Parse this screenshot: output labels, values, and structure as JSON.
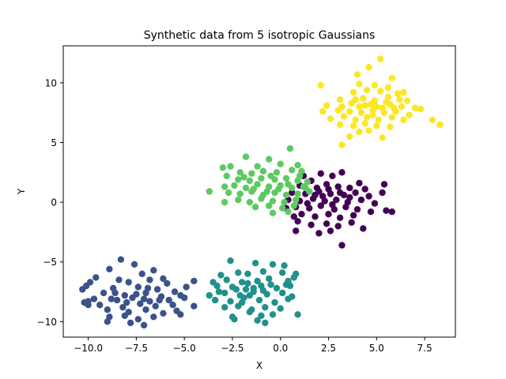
{
  "chart_data": {
    "type": "scatter",
    "title": "Synthetic data from 5 isotropic Gaussians",
    "xlabel": "X",
    "ylabel": "Y",
    "xlim": [
      -11.3,
      9.1
    ],
    "ylim": [
      -11.3,
      13.1
    ],
    "grid": false,
    "x_ticks": [
      -10.0,
      -7.5,
      -5.0,
      -2.5,
      0.0,
      2.5,
      5.0,
      7.5
    ],
    "x_tick_labels": [
      "−10.0",
      "−7.5",
      "−5.0",
      "−2.5",
      "0.0",
      "2.5",
      "5.0",
      "7.5"
    ],
    "y_ticks": [
      -10,
      -5,
      0,
      5,
      10
    ],
    "y_tick_labels": [
      "−10",
      "−5",
      "0",
      "5",
      "10"
    ],
    "series": [
      {
        "color": "#440154",
        "points": [
          [
            1.2,
            2.2
          ],
          [
            1.6,
            1.8
          ],
          [
            2.1,
            2.4
          ],
          [
            2.7,
            2.2
          ],
          [
            3.2,
            2.5
          ],
          [
            4.1,
            1.6
          ],
          [
            1.0,
            1.4
          ],
          [
            1.9,
            1.2
          ],
          [
            2.4,
            1.5
          ],
          [
            3.0,
            1.3
          ],
          [
            3.6,
            1.2
          ],
          [
            4.4,
            1.1
          ],
          [
            0.6,
            0.8
          ],
          [
            1.3,
            0.7
          ],
          [
            2.0,
            0.9
          ],
          [
            2.6,
            0.7
          ],
          [
            3.3,
            0.6
          ],
          [
            3.9,
            0.8
          ],
          [
            4.6,
            0.5
          ],
          [
            0.4,
            0.2
          ],
          [
            1.0,
            0.1
          ],
          [
            1.7,
            0.3
          ],
          [
            2.3,
            0.1
          ],
          [
            2.9,
            0.2
          ],
          [
            3.5,
            0.0
          ],
          [
            4.2,
            0.2
          ],
          [
            4.9,
            -0.1
          ],
          [
            0.8,
            -0.4
          ],
          [
            1.5,
            -0.5
          ],
          [
            2.1,
            -0.3
          ],
          [
            2.8,
            -0.6
          ],
          [
            3.4,
            -0.4
          ],
          [
            4.0,
            -0.6
          ],
          [
            4.7,
            -0.8
          ],
          [
            1.1,
            -1.0
          ],
          [
            1.8,
            -1.2
          ],
          [
            2.5,
            -1.0
          ],
          [
            3.1,
            -1.3
          ],
          [
            3.8,
            -1.1
          ],
          [
            0.9,
            -1.6
          ],
          [
            1.6,
            -1.9
          ],
          [
            2.4,
            -1.8
          ],
          [
            3.0,
            -2.0
          ],
          [
            3.7,
            -1.7
          ],
          [
            0.8,
            -2.4
          ],
          [
            2.0,
            -2.6
          ],
          [
            2.6,
            -2.4
          ],
          [
            4.3,
            -2.2
          ],
          [
            3.2,
            -3.6
          ],
          [
            5.5,
            -0.7
          ],
          [
            5.8,
            -0.8
          ],
          [
            0.3,
            -0.5
          ],
          [
            1.4,
            -0.1
          ],
          [
            2.2,
            0.5
          ],
          [
            2.7,
            -0.2
          ],
          [
            3.1,
            0.8
          ],
          [
            3.6,
            0.4
          ],
          [
            1.8,
            0.6
          ],
          [
            2.5,
            1.1
          ],
          [
            0.7,
            -1.2
          ],
          [
            5.4,
            1.5
          ],
          [
            5.3,
            0.8
          ]
        ]
      },
      {
        "color": "#3b528b",
        "points": [
          [
            -8.3,
            -4.8
          ],
          [
            -7.6,
            -5.2
          ],
          [
            -6.6,
            -5.7
          ],
          [
            -8.9,
            -5.6
          ],
          [
            -7.2,
            -6.0
          ],
          [
            -6.1,
            -6.4
          ],
          [
            -9.6,
            -6.3
          ],
          [
            -8.4,
            -6.5
          ],
          [
            -7.9,
            -6.7
          ],
          [
            -6.8,
            -6.5
          ],
          [
            -5.9,
            -6.8
          ],
          [
            -9.9,
            -6.7
          ],
          [
            -10.1,
            -7.0
          ],
          [
            -8.7,
            -7.2
          ],
          [
            -7.4,
            -7.1
          ],
          [
            -6.4,
            -7.3
          ],
          [
            -5.5,
            -7.5
          ],
          [
            -10.3,
            -7.3
          ],
          [
            -9.2,
            -7.6
          ],
          [
            -8.1,
            -7.8
          ],
          [
            -7.0,
            -7.6
          ],
          [
            -6.2,
            -7.9
          ],
          [
            -5.2,
            -7.8
          ],
          [
            -9.7,
            -8.1
          ],
          [
            -8.5,
            -8.2
          ],
          [
            -7.7,
            -8.0
          ],
          [
            -6.8,
            -8.3
          ],
          [
            -5.8,
            -8.2
          ],
          [
            -5.0,
            -8.0
          ],
          [
            -10.0,
            -8.3
          ],
          [
            -9.4,
            -8.6
          ],
          [
            -8.2,
            -8.8
          ],
          [
            -7.3,
            -8.5
          ],
          [
            -6.5,
            -8.7
          ],
          [
            -5.6,
            -8.6
          ],
          [
            -4.5,
            -8.7
          ],
          [
            -10.0,
            -8.6
          ],
          [
            -9.0,
            -9.0
          ],
          [
            -7.9,
            -9.2
          ],
          [
            -7.0,
            -9.0
          ],
          [
            -6.1,
            -9.3
          ],
          [
            -5.4,
            -9.1
          ],
          [
            -8.9,
            -9.6
          ],
          [
            -8.1,
            -9.5
          ],
          [
            -7.4,
            -9.8
          ],
          [
            -6.6,
            -9.6
          ],
          [
            -9.0,
            -10.0
          ],
          [
            -7.8,
            -10.1
          ],
          [
            -7.1,
            -10.3
          ],
          [
            -4.5,
            -6.6
          ],
          [
            -4.9,
            -7.1
          ],
          [
            -10.2,
            -8.4
          ],
          [
            -8.6,
            -7.6
          ],
          [
            -7.5,
            -7.7
          ],
          [
            -6.9,
            -7.2
          ],
          [
            -8.0,
            -8.4
          ],
          [
            -7.1,
            -8.1
          ],
          [
            -6.3,
            -8.2
          ],
          [
            -8.8,
            -8.1
          ],
          [
            -5.2,
            -9.4
          ]
        ]
      },
      {
        "color": "#21918c",
        "points": [
          [
            -2.6,
            -4.9
          ],
          [
            -1.3,
            -5.1
          ],
          [
            -0.4,
            -5.2
          ],
          [
            0.2,
            -5.3
          ],
          [
            -3.1,
            -6.1
          ],
          [
            -2.2,
            -5.9
          ],
          [
            -1.7,
            -6.0
          ],
          [
            -0.9,
            -5.8
          ],
          [
            0.1,
            -5.9
          ],
          [
            0.8,
            -6.0
          ],
          [
            -3.5,
            -6.7
          ],
          [
            -2.8,
            -6.5
          ],
          [
            -2.0,
            -6.7
          ],
          [
            -1.2,
            -6.6
          ],
          [
            -0.6,
            -6.4
          ],
          [
            0.4,
            -6.6
          ],
          [
            0.7,
            -6.3
          ],
          [
            -3.3,
            -7.0
          ],
          [
            -2.5,
            -7.1
          ],
          [
            -1.8,
            -7.3
          ],
          [
            -1.0,
            -7.0
          ],
          [
            -0.2,
            -7.2
          ],
          [
            0.5,
            -7.0
          ],
          [
            -3.7,
            -7.8
          ],
          [
            -2.9,
            -7.6
          ],
          [
            -2.1,
            -7.8
          ],
          [
            -1.4,
            -7.5
          ],
          [
            -0.7,
            -7.7
          ],
          [
            0.1,
            -7.6
          ],
          [
            0.6,
            -7.9
          ],
          [
            -3.4,
            -8.2
          ],
          [
            -2.6,
            -8.3
          ],
          [
            -1.9,
            -8.0
          ],
          [
            -1.1,
            -8.2
          ],
          [
            -0.3,
            -8.4
          ],
          [
            0.4,
            -8.1
          ],
          [
            -2.9,
            -8.8
          ],
          [
            -2.2,
            -8.7
          ],
          [
            -1.5,
            -9.0
          ],
          [
            -0.8,
            -8.8
          ],
          [
            0.0,
            -8.9
          ],
          [
            -2.5,
            -9.6
          ],
          [
            -1.6,
            -9.2
          ],
          [
            -1.0,
            -9.5
          ],
          [
            -0.4,
            -9.4
          ],
          [
            0.9,
            -9.4
          ],
          [
            -2.4,
            -9.8
          ],
          [
            -1.2,
            -9.9
          ],
          [
            -0.8,
            -10.1
          ],
          [
            -1.7,
            -6.8
          ],
          [
            -1.4,
            -7.2
          ],
          [
            -0.9,
            -7.4
          ],
          [
            -1.6,
            -7.8
          ],
          [
            -2.3,
            -7.3
          ],
          [
            -0.5,
            -6.9
          ],
          [
            -2.0,
            -8.4
          ],
          [
            0.3,
            -6.9
          ],
          [
            -3.2,
            -7.5
          ]
        ]
      },
      {
        "color": "#5ec962",
        "points": [
          [
            0.5,
            4.5
          ],
          [
            -0.6,
            3.6
          ],
          [
            -1.8,
            3.8
          ],
          [
            -2.6,
            3.0
          ],
          [
            -1.2,
            3.0
          ],
          [
            0.0,
            3.2
          ],
          [
            0.9,
            3.1
          ],
          [
            1.1,
            2.6
          ],
          [
            -3.0,
            2.9
          ],
          [
            -2.1,
            2.5
          ],
          [
            -1.5,
            2.4
          ],
          [
            -0.9,
            2.6
          ],
          [
            -0.2,
            2.5
          ],
          [
            0.6,
            2.7
          ],
          [
            1.0,
            2.2
          ],
          [
            -2.8,
            2.2
          ],
          [
            -2.2,
            1.9
          ],
          [
            -1.6,
            1.8
          ],
          [
            -1.0,
            2.0
          ],
          [
            -0.3,
            1.9
          ],
          [
            0.3,
            2.0
          ],
          [
            0.9,
            1.8
          ],
          [
            1.4,
            1.7
          ],
          [
            -2.9,
            1.3
          ],
          [
            -2.4,
            1.4
          ],
          [
            -1.8,
            1.2
          ],
          [
            -1.2,
            1.5
          ],
          [
            -0.6,
            1.3
          ],
          [
            0.0,
            1.4
          ],
          [
            0.6,
            1.2
          ],
          [
            1.2,
            1.3
          ],
          [
            -2.7,
            0.8
          ],
          [
            -2.1,
            0.7
          ],
          [
            -1.5,
            0.9
          ],
          [
            -0.9,
            0.6
          ],
          [
            -0.3,
            0.8
          ],
          [
            0.3,
            0.6
          ],
          [
            0.9,
            0.7
          ],
          [
            1.5,
            0.9
          ],
          [
            -2.2,
            0.2
          ],
          [
            -1.6,
            0.0
          ],
          [
            -1.0,
            0.3
          ],
          [
            -0.4,
            0.1
          ],
          [
            0.2,
            0.0
          ],
          [
            0.8,
            0.2
          ],
          [
            -1.3,
            -0.4
          ],
          [
            -0.6,
            -0.3
          ],
          [
            0.1,
            -0.5
          ],
          [
            0.7,
            -0.3
          ],
          [
            -3.7,
            0.9
          ],
          [
            -2.9,
            0.0
          ],
          [
            -0.4,
            -0.9
          ],
          [
            0.4,
            -0.8
          ],
          [
            -1.4,
            1.1
          ],
          [
            -0.7,
            0.9
          ],
          [
            -0.1,
            1.1
          ],
          [
            0.4,
            1.5
          ],
          [
            -1.9,
            2.1
          ],
          [
            1.3,
            1.2
          ],
          [
            -0.5,
            2.2
          ]
        ]
      },
      {
        "color": "#fde725",
        "points": [
          [
            5.2,
            12.0
          ],
          [
            4.6,
            11.3
          ],
          [
            4.0,
            10.7
          ],
          [
            5.8,
            10.4
          ],
          [
            2.1,
            9.8
          ],
          [
            4.1,
            9.9
          ],
          [
            4.9,
            9.8
          ],
          [
            5.6,
            9.6
          ],
          [
            3.8,
            9.2
          ],
          [
            4.5,
            9.4
          ],
          [
            5.2,
            9.3
          ],
          [
            6.1,
            9.1
          ],
          [
            6.4,
            9.2
          ],
          [
            3.1,
            8.6
          ],
          [
            3.9,
            8.6
          ],
          [
            4.3,
            8.7
          ],
          [
            4.9,
            8.5
          ],
          [
            5.6,
            8.8
          ],
          [
            6.2,
            8.6
          ],
          [
            6.6,
            8.5
          ],
          [
            2.4,
            8.1
          ],
          [
            3.2,
            8.0
          ],
          [
            3.7,
            8.3
          ],
          [
            4.4,
            8.1
          ],
          [
            5.0,
            8.0
          ],
          [
            5.7,
            8.2
          ],
          [
            6.3,
            8.0
          ],
          [
            7.0,
            7.9
          ],
          [
            2.2,
            7.6
          ],
          [
            3.0,
            7.7
          ],
          [
            3.6,
            7.6
          ],
          [
            4.2,
            7.5
          ],
          [
            4.8,
            7.7
          ],
          [
            5.4,
            7.5
          ],
          [
            6.0,
            7.6
          ],
          [
            6.7,
            7.3
          ],
          [
            2.6,
            7.0
          ],
          [
            3.3,
            7.2
          ],
          [
            3.9,
            6.9
          ],
          [
            4.5,
            7.1
          ],
          [
            5.1,
            6.9
          ],
          [
            5.8,
            7.1
          ],
          [
            6.4,
            6.9
          ],
          [
            3.1,
            6.5
          ],
          [
            3.8,
            6.4
          ],
          [
            4.4,
            6.6
          ],
          [
            5.0,
            6.4
          ],
          [
            5.7,
            6.3
          ],
          [
            3.6,
            5.5
          ],
          [
            4.1,
            5.9
          ],
          [
            4.6,
            6.0
          ],
          [
            5.3,
            5.4
          ],
          [
            3.2,
            4.8
          ],
          [
            8.3,
            6.5
          ],
          [
            7.9,
            6.9
          ],
          [
            7.3,
            7.8
          ],
          [
            4.7,
            8.2
          ],
          [
            5.3,
            7.9
          ],
          [
            5.5,
            8.4
          ],
          [
            4.8,
            7.3
          ],
          [
            5.9,
            7.9
          ],
          [
            4.1,
            8.0
          ]
        ]
      }
    ]
  }
}
